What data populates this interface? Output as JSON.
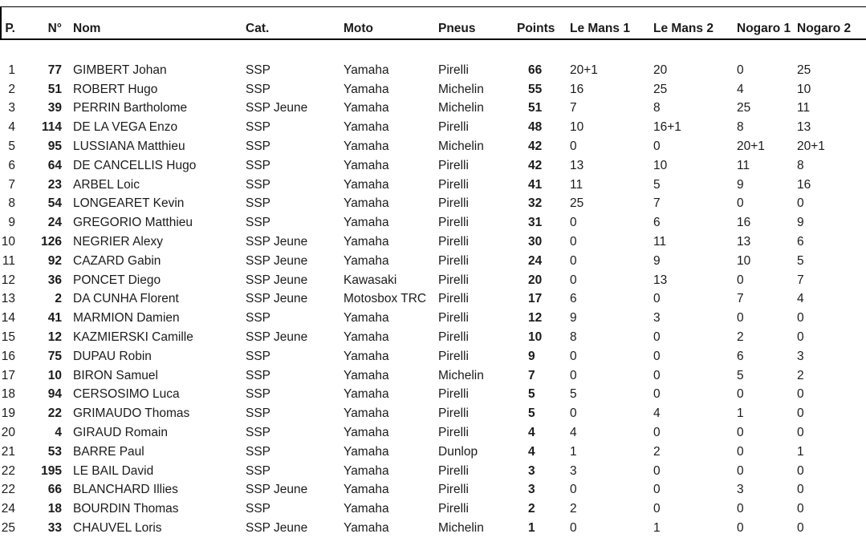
{
  "colors": {
    "background": "#ffffff",
    "text": "#1b1b1b",
    "rule": "#000000"
  },
  "table": {
    "columns": [
      {
        "key": "pos",
        "label": "P."
      },
      {
        "key": "num",
        "label": "N°"
      },
      {
        "key": "name",
        "label": "Nom"
      },
      {
        "key": "cat",
        "label": "Cat."
      },
      {
        "key": "moto",
        "label": "Moto"
      },
      {
        "key": "pneus",
        "label": "Pneus"
      },
      {
        "key": "points",
        "label": "Points"
      },
      {
        "key": "lemans1",
        "label": "Le Mans 1"
      },
      {
        "key": "lemans2",
        "label": "Le Mans 2"
      },
      {
        "key": "nogaro1",
        "label": "Nogaro 1"
      },
      {
        "key": "nogaro2",
        "label": "Nogaro 2"
      }
    ],
    "rows": [
      [
        "1",
        "77",
        "GIMBERT Johan",
        "SSP",
        "Yamaha",
        "Pirelli",
        "66",
        "20+1",
        "20",
        "0",
        "25"
      ],
      [
        "2",
        "51",
        "ROBERT Hugo",
        "SSP",
        "Yamaha",
        "Michelin",
        "55",
        "16",
        "25",
        "4",
        "10"
      ],
      [
        "3",
        "39",
        "PERRIN Bartholome",
        "SSP Jeune",
        "Yamaha",
        "Michelin",
        "51",
        "7",
        "8",
        "25",
        "11"
      ],
      [
        "4",
        "114",
        "DE LA VEGA Enzo",
        "SSP",
        "Yamaha",
        "Pirelli",
        "48",
        "10",
        "16+1",
        "8",
        "13"
      ],
      [
        "5",
        "95",
        "LUSSIANA Matthieu",
        "SSP",
        "Yamaha",
        "Michelin",
        "42",
        "0",
        "0",
        "20+1",
        "20+1"
      ],
      [
        "6",
        "64",
        "DE CANCELLIS Hugo",
        "SSP",
        "Yamaha",
        "Pirelli",
        "42",
        "13",
        "10",
        "11",
        "8"
      ],
      [
        "7",
        "23",
        "ARBEL Loic",
        "SSP",
        "Yamaha",
        "Pirelli",
        "41",
        "11",
        "5",
        "9",
        "16"
      ],
      [
        "8",
        "54",
        "LONGEARET Kevin",
        "SSP",
        "Yamaha",
        "Pirelli",
        "32",
        "25",
        "7",
        "0",
        "0"
      ],
      [
        "9",
        "24",
        "GREGORIO Matthieu",
        "SSP",
        "Yamaha",
        "Pirelli",
        "31",
        "0",
        "6",
        "16",
        "9"
      ],
      [
        "10",
        "126",
        "NEGRIER Alexy",
        "SSP Jeune",
        "Yamaha",
        "Pirelli",
        "30",
        "0",
        "11",
        "13",
        "6"
      ],
      [
        "11",
        "92",
        "CAZARD Gabin",
        "SSP Jeune",
        "Yamaha",
        "Pirelli",
        "24",
        "0",
        "9",
        "10",
        "5"
      ],
      [
        "12",
        "36",
        "PONCET Diego",
        "SSP Jeune",
        "Kawasaki",
        "Pirelli",
        "20",
        "0",
        "13",
        "0",
        "7"
      ],
      [
        "13",
        "2",
        "DA CUNHA Florent",
        "SSP Jeune",
        "Motosbox TRC",
        "Pirelli",
        "17",
        "6",
        "0",
        "7",
        "4"
      ],
      [
        "14",
        "41",
        "MARMION Damien",
        "SSP",
        "Yamaha",
        "Pirelli",
        "12",
        "9",
        "3",
        "0",
        "0"
      ],
      [
        "15",
        "12",
        "KAZMIERSKI Camille",
        "SSP Jeune",
        "Yamaha",
        "Pirelli",
        "10",
        "8",
        "0",
        "2",
        "0"
      ],
      [
        "16",
        "75",
        "DUPAU Robin",
        "SSP",
        "Yamaha",
        "Pirelli",
        "9",
        "0",
        "0",
        "6",
        "3"
      ],
      [
        "17",
        "10",
        "BIRON Samuel",
        "SSP",
        "Yamaha",
        "Michelin",
        "7",
        "0",
        "0",
        "5",
        "2"
      ],
      [
        "18",
        "94",
        "CERSOSIMO Luca",
        "SSP",
        "Yamaha",
        "Pirelli",
        "5",
        "5",
        "0",
        "0",
        "0"
      ],
      [
        "19",
        "22",
        "GRIMAUDO Thomas",
        "SSP",
        "Yamaha",
        "Pirelli",
        "5",
        "0",
        "4",
        "1",
        "0"
      ],
      [
        "20",
        "4",
        "GIRAUD Romain",
        "SSP",
        "Yamaha",
        "Pirelli",
        "4",
        "4",
        "0",
        "0",
        "0"
      ],
      [
        "21",
        "53",
        "BARRE Paul",
        "SSP",
        "Yamaha",
        "Dunlop",
        "4",
        "1",
        "2",
        "0",
        "1"
      ],
      [
        "22",
        "195",
        "LE BAIL David",
        "SSP",
        "Yamaha",
        "Pirelli",
        "3",
        "3",
        "0",
        "0",
        "0"
      ],
      [
        "22",
        "66",
        "BLANCHARD Illies",
        "SSP Jeune",
        "Yamaha",
        "Pirelli",
        "3",
        "0",
        "0",
        "3",
        "0"
      ],
      [
        "24",
        "18",
        "BOURDIN Thomas",
        "SSP",
        "Yamaha",
        "Pirelli",
        "2",
        "2",
        "0",
        "0",
        "0"
      ],
      [
        "25",
        "33",
        "CHAUVEL Loris",
        "SSP Jeune",
        "Yamaha",
        "Michelin",
        "1",
        "0",
        "1",
        "0",
        "0"
      ]
    ]
  }
}
